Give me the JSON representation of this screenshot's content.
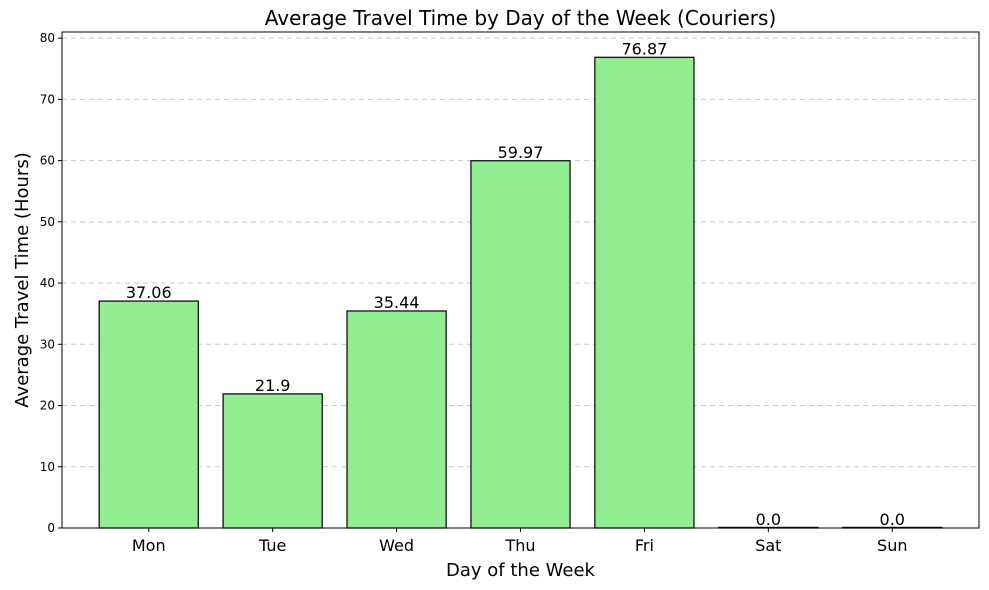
{
  "chart_data": {
    "type": "bar",
    "title": "Average Travel Time by Day of the Week (Couriers)",
    "xlabel": "Day of the Week",
    "ylabel": "Average Travel Time (Hours)",
    "categories": [
      "Mon",
      "Tue",
      "Wed",
      "Thu",
      "Fri",
      "Sat",
      "Sun"
    ],
    "values": [
      37.06,
      21.9,
      35.44,
      59.97,
      76.87,
      0.0,
      0.0
    ],
    "value_labels": [
      "37.06",
      "21.9",
      "35.44",
      "59.97",
      "76.87",
      "0.0",
      "0.0"
    ],
    "ylim": [
      0,
      81
    ],
    "yticks": [
      0,
      10,
      20,
      30,
      40,
      50,
      60,
      70,
      80
    ],
    "grid": {
      "y": true,
      "style": "dashed"
    },
    "bar_color": "#90ee90",
    "edge_color": "#000000"
  }
}
